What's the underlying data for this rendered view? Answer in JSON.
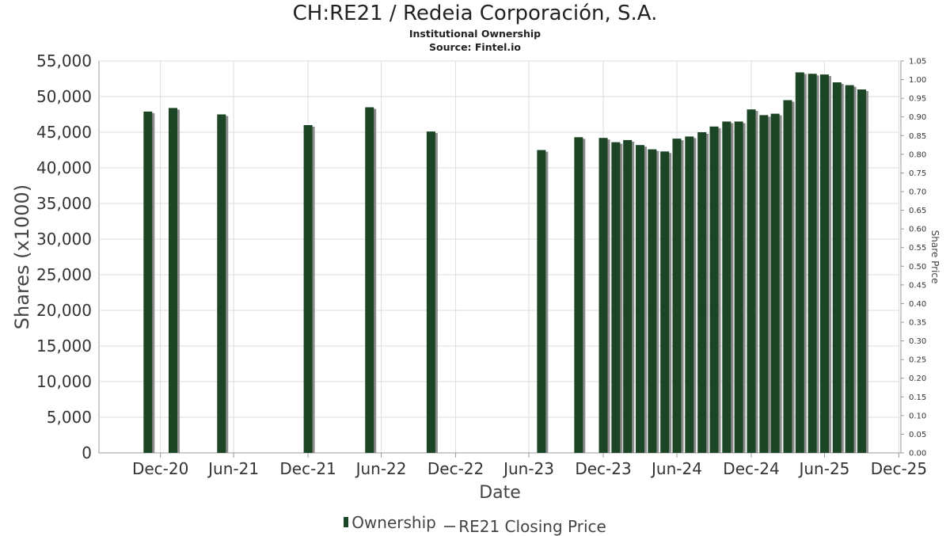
{
  "chart_data": {
    "type": "bar",
    "title": "CH:RE21 / Redeia Corporación, S.A.",
    "subtitle": "Institutional Ownership",
    "source": "Source: Fintel.io",
    "xlabel": "Date",
    "ylabel": "Shares (x1000)",
    "y2label": "Share Price",
    "ylim": [
      0,
      55000
    ],
    "y2lim": [
      0,
      1.05
    ],
    "y_ticks": [
      "0",
      "5,000",
      "10,000",
      "15,000",
      "20,000",
      "25,000",
      "30,000",
      "35,000",
      "40,000",
      "45,000",
      "50,000",
      "55,000"
    ],
    "y2_ticks": [
      "0.00",
      "0.05",
      "0.10",
      "0.15",
      "0.20",
      "0.25",
      "0.30",
      "0.35",
      "0.40",
      "0.45",
      "0.50",
      "0.55",
      "0.60",
      "0.65",
      "0.70",
      "0.75",
      "0.80",
      "0.85",
      "0.90",
      "0.95",
      "1.00",
      "1.05"
    ],
    "x_ticks": [
      {
        "label": "Dec-20",
        "date": "2020-12-31"
      },
      {
        "label": "Jun-21",
        "date": "2021-06-30"
      },
      {
        "label": "Dec-21",
        "date": "2021-12-31"
      },
      {
        "label": "Jun-22",
        "date": "2022-06-30"
      },
      {
        "label": "Dec-22",
        "date": "2022-12-31"
      },
      {
        "label": "Jun-23",
        "date": "2023-06-30"
      },
      {
        "label": "Dec-23",
        "date": "2023-12-31"
      },
      {
        "label": "Jun-24",
        "date": "2024-06-30"
      },
      {
        "label": "Dec-24",
        "date": "2024-12-31"
      },
      {
        "label": "Jun-25",
        "date": "2025-06-30"
      },
      {
        "label": "Dec-25",
        "date": "2025-12-31"
      }
    ],
    "grid": true,
    "legend_position": "bottom",
    "series": [
      {
        "name": "Ownership",
        "type": "bar",
        "color": "#1b4524",
        "points": [
          {
            "date": "2020-11-30",
            "value": 47900
          },
          {
            "date": "2021-01-31",
            "value": 48400
          },
          {
            "date": "2021-05-31",
            "value": 47500
          },
          {
            "date": "2021-12-31",
            "value": 46000
          },
          {
            "date": "2022-06-01",
            "value": 48500
          },
          {
            "date": "2022-10-31",
            "value": 45100
          },
          {
            "date": "2023-07-31",
            "value": 42500
          },
          {
            "date": "2023-10-31",
            "value": 44300
          },
          {
            "date": "2023-12-31",
            "value": 44200
          },
          {
            "date": "2024-01-31",
            "value": 43600
          },
          {
            "date": "2024-02-29",
            "value": 43900
          },
          {
            "date": "2024-03-31",
            "value": 43200
          },
          {
            "date": "2024-04-30",
            "value": 42600
          },
          {
            "date": "2024-05-31",
            "value": 42300
          },
          {
            "date": "2024-06-30",
            "value": 44100
          },
          {
            "date": "2024-07-31",
            "value": 44400
          },
          {
            "date": "2024-08-31",
            "value": 45000
          },
          {
            "date": "2024-09-30",
            "value": 45800
          },
          {
            "date": "2024-10-31",
            "value": 46500
          },
          {
            "date": "2024-11-30",
            "value": 46500
          },
          {
            "date": "2024-12-31",
            "value": 48200
          },
          {
            "date": "2025-01-31",
            "value": 47400
          },
          {
            "date": "2025-02-28",
            "value": 47600
          },
          {
            "date": "2025-03-31",
            "value": 49500
          },
          {
            "date": "2025-04-30",
            "value": 53400
          },
          {
            "date": "2025-05-31",
            "value": 53200
          },
          {
            "date": "2025-06-30",
            "value": 53100
          },
          {
            "date": "2025-07-31",
            "value": 52000
          },
          {
            "date": "2025-08-31",
            "value": 51600
          },
          {
            "date": "2025-09-30",
            "value": 51000
          }
        ]
      },
      {
        "name": "RE21 Closing Price",
        "type": "line",
        "color": "#666666",
        "points": []
      }
    ]
  }
}
